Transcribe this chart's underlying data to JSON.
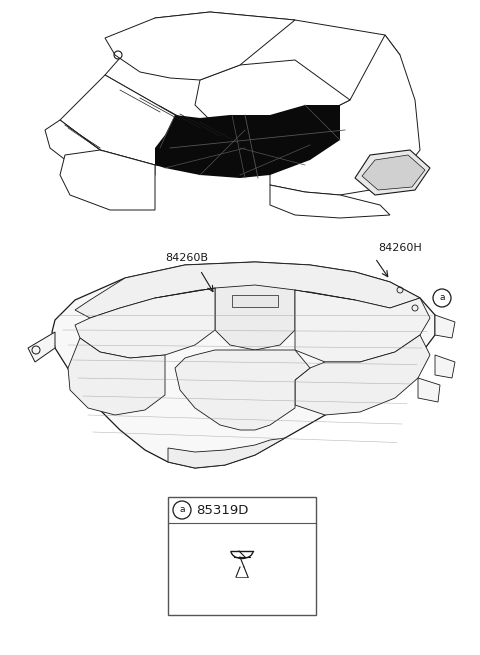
{
  "bg_color": "#ffffff",
  "label_84260H": "84260H",
  "label_84260B": "84260B",
  "label_85319D": "85319D",
  "label_a": "a",
  "fig_width": 4.8,
  "fig_height": 6.55,
  "dpi": 100,
  "lc": "#1a1a1a",
  "dark_fill": "#0a0a0a",
  "text_color": "#1a1a1a"
}
